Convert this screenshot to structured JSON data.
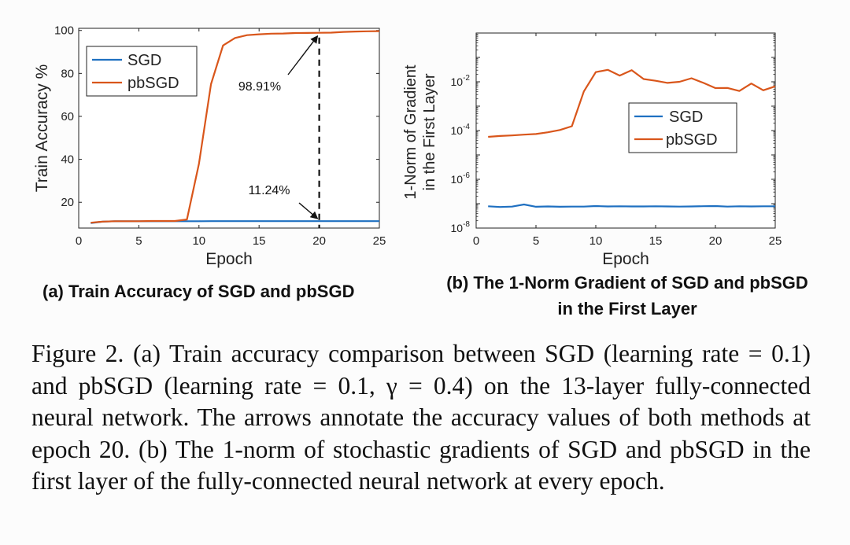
{
  "colors": {
    "sgd": "#1f70c1",
    "pbsgd": "#d9561b",
    "axis": "#222222"
  },
  "chart_data": [
    {
      "type": "line",
      "title": "",
      "xlabel": "Epoch",
      "ylabel": "Train Accuracy %",
      "xlim": [
        0,
        25
      ],
      "ylim": [
        8,
        101
      ],
      "xticks": [
        0,
        5,
        10,
        15,
        20,
        25
      ],
      "yticks": [
        20,
        40,
        60,
        80,
        100
      ],
      "legend_position": "top-left",
      "series": [
        {
          "name": "SGD",
          "color_key": "sgd",
          "x": [
            1,
            2,
            3,
            4,
            5,
            6,
            7,
            8,
            9,
            10,
            11,
            12,
            13,
            14,
            15,
            16,
            17,
            18,
            19,
            20,
            21,
            22,
            23,
            24,
            25
          ],
          "y": [
            10.3,
            11.0,
            11.2,
            11.2,
            11.2,
            11.2,
            11.2,
            11.2,
            11.2,
            11.2,
            11.24,
            11.24,
            11.24,
            11.24,
            11.24,
            11.24,
            11.24,
            11.24,
            11.24,
            11.24,
            11.24,
            11.24,
            11.24,
            11.24,
            11.24
          ]
        },
        {
          "name": "pbSGD",
          "color_key": "pbsgd",
          "x": [
            1,
            2,
            3,
            4,
            5,
            6,
            7,
            8,
            9,
            10,
            11,
            12,
            13,
            14,
            15,
            16,
            17,
            18,
            19,
            20,
            21,
            22,
            23,
            24,
            25
          ],
          "y": [
            10.5,
            11.0,
            11.2,
            11.2,
            11.2,
            11.3,
            11.3,
            11.3,
            12.0,
            38.0,
            75.0,
            93.0,
            96.5,
            97.8,
            98.2,
            98.5,
            98.6,
            98.8,
            98.85,
            98.91,
            99.0,
            99.3,
            99.5,
            99.6,
            99.7
          ]
        }
      ],
      "annotations": [
        {
          "text": "98.91%",
          "x": 20,
          "y": 98.91
        },
        {
          "text": "11.24%",
          "x": 20,
          "y": 11.24
        }
      ],
      "dashed_line_x": 20
    },
    {
      "type": "line",
      "title": "",
      "xlabel": "Epoch",
      "ylabel": "1-Norm of Gradient in the First Layer",
      "ylabel_lines": [
        "1-Norm of Gradient",
        "in the First Layer"
      ],
      "yscale": "log",
      "xlim": [
        0,
        25
      ],
      "ylim": [
        1e-08,
        1
      ],
      "xticks": [
        0,
        5,
        10,
        15,
        20,
        25
      ],
      "yticks": [
        {
          "value": 1e-08,
          "base": "10",
          "exp": "-8"
        },
        {
          "value": 1e-06,
          "base": "10",
          "exp": "-6"
        },
        {
          "value": 0.0001,
          "base": "10",
          "exp": "-4"
        },
        {
          "value": 0.01,
          "base": "10",
          "exp": "-2"
        }
      ],
      "legend_position": "center-right",
      "series": [
        {
          "name": "SGD",
          "color_key": "sgd",
          "x": [
            1,
            2,
            3,
            4,
            5,
            6,
            7,
            8,
            9,
            10,
            11,
            12,
            13,
            14,
            15,
            16,
            17,
            18,
            19,
            20,
            21,
            22,
            23,
            24,
            25
          ],
          "y": [
            7.8e-08,
            7.3e-08,
            7.6e-08,
            9.3e-08,
            7.5e-08,
            7.7e-08,
            7.5e-08,
            7.6e-08,
            7.6e-08,
            8e-08,
            7.7e-08,
            7.8e-08,
            7.7e-08,
            7.7e-08,
            7.8e-08,
            7.7e-08,
            7.6e-08,
            7.7e-08,
            7.9e-08,
            8e-08,
            7.6e-08,
            7.8e-08,
            7.7e-08,
            7.8e-08,
            7.8e-08
          ]
        },
        {
          "name": "pbSGD",
          "color_key": "pbsgd",
          "x": [
            1,
            2,
            3,
            4,
            5,
            6,
            7,
            8,
            9,
            10,
            11,
            12,
            13,
            14,
            15,
            16,
            17,
            18,
            19,
            20,
            21,
            22,
            23,
            24,
            25
          ],
          "y": [
            5.5e-05,
            6e-05,
            6.3e-05,
            6.8e-05,
            7.2e-05,
            8.5e-05,
            0.000105,
            0.00015,
            0.004,
            0.025,
            0.031,
            0.018,
            0.03,
            0.013,
            0.011,
            0.009,
            0.01,
            0.014,
            0.009,
            0.0055,
            0.0056,
            0.0042,
            0.0085,
            0.0045,
            0.0065
          ]
        }
      ]
    }
  ],
  "subcaptions": {
    "a": "(a) Train Accuracy of SGD and pbSGD",
    "b": "(b) The 1-Norm Gradient of SGD and pbSGD in the First Layer"
  },
  "caption": "Figure 2.  (a) Train accuracy comparison between SGD (learning rate = 0.1) and pbSGD (learning rate = 0.1, γ = 0.4) on the 13-layer fully-connected neural network. The arrows annotate the accuracy values of both methods at epoch 20. (b) The 1-norm of stochastic gradients of SGD and pbSGD in the first layer of the fully-connected neural network at every epoch."
}
